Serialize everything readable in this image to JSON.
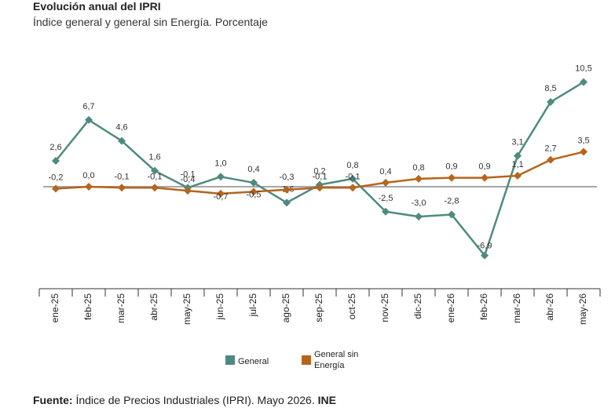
{
  "header": {
    "title": "Evolución anual del IPRI",
    "subtitle": "Índice general y general sin Energía. Porcentaje"
  },
  "footer": {
    "label": "Fuente:",
    "text": " Índice de Precios Industriales (IPRI). Mayo 2026. ",
    "org": "INE"
  },
  "colors": {
    "general": "#4e8a80",
    "sin_energia": "#b5651d",
    "zero_line": "#a6a6a6",
    "axis": "#333333"
  },
  "chart_data": {
    "type": "line",
    "title": "Evolución anual del IPRI",
    "subtitle": "Índice general y general sin Energía. Porcentaje",
    "categories": [
      "ene-25",
      "feb-25",
      "mar-25",
      "abr-25",
      "may-25",
      "jun-25",
      "jul-25",
      "ago-25",
      "sep-25",
      "oct-25",
      "nov-25",
      "dic-25",
      "ene-26",
      "feb-26",
      "mar-26",
      "abr-26",
      "may-26"
    ],
    "series": [
      {
        "name": "General",
        "color": "#4e8a80",
        "marker": "diamond",
        "values": [
          2.6,
          6.7,
          4.6,
          1.6,
          -0.1,
          1.0,
          0.4,
          -1.6,
          0.2,
          0.8,
          -2.5,
          -3.0,
          -2.8,
          -6.9,
          3.1,
          8.5,
          10.5
        ],
        "labels": [
          "2,6",
          "6,7",
          "4,6",
          "1,6",
          "-0,1",
          "1,0",
          "0,4",
          "-1,6",
          "0,2",
          "0,8",
          "-2,5",
          "-3,0",
          "-2,8",
          "-6,9",
          "3,1",
          "8,5",
          "10,5"
        ]
      },
      {
        "name": "General sin Energía",
        "color": "#b5651d",
        "marker": "diamond",
        "values": [
          -0.2,
          0.0,
          -0.1,
          -0.1,
          -0.4,
          -0.7,
          -0.5,
          -0.3,
          -0.1,
          -0.1,
          0.4,
          0.8,
          0.9,
          0.9,
          1.1,
          2.7,
          3.5
        ],
        "labels": [
          "-0,2",
          "0,0",
          "-0,1",
          "-0,1",
          "-0,4",
          "-0,7",
          "-0,5",
          "-0,3",
          "-0,1",
          "-0,1",
          "0,4",
          "0,8",
          "0,9",
          "0,9",
          "1,1",
          "2,7",
          "3,5"
        ]
      }
    ],
    "ylim": [
      -10,
      12
    ],
    "grid": false,
    "legend": {
      "position": "bottom",
      "items": [
        "General",
        "General sin Energía"
      ],
      "label_lines": [
        [
          "General"
        ],
        [
          "General sin",
          "Energía"
        ]
      ]
    }
  }
}
